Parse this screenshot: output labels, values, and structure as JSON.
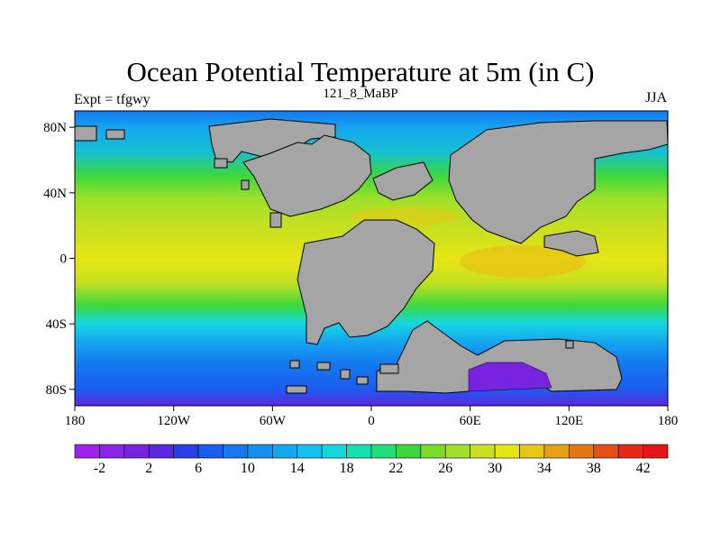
{
  "title": "Ocean Potential Temperature at 5m (in C)",
  "left_string": "Expt = tfgwy",
  "center_string": "121_8_MaBP",
  "right_string": "JJA",
  "y_ticks": [
    "80N",
    "40N",
    "0",
    "40S",
    "80S"
  ],
  "x_ticks": [
    "180",
    "120W",
    "60W",
    "0",
    "60E",
    "120E",
    "180"
  ],
  "colorbar": {
    "labels": [
      "-2",
      "2",
      "6",
      "10",
      "14",
      "18",
      "22",
      "26",
      "30",
      "34",
      "38",
      "42"
    ],
    "colors": [
      "#a020f0",
      "#8c22e8",
      "#7823e0",
      "#5a28e0",
      "#2a3ee8",
      "#1a5ef0",
      "#1478f0",
      "#1490f0",
      "#14a8f0",
      "#14c0f0",
      "#14d8e0",
      "#14e0b0",
      "#1ee078",
      "#3cd83c",
      "#78dc28",
      "#a0e028",
      "#c8e020",
      "#e6e614",
      "#e6c814",
      "#e6a014",
      "#e67814",
      "#e65014",
      "#e62814",
      "#e61414"
    ]
  },
  "chart_data": {
    "type": "heatmap",
    "title": "Ocean Potential Temperature at 5m (in C)",
    "units": "C",
    "x_range": [
      -180,
      180
    ],
    "y_range": [
      -90,
      90
    ],
    "colorbar_range": [
      -4,
      44
    ],
    "colorbar_step": 2,
    "zonal_band_values": [
      {
        "lat": 85,
        "value": 6
      },
      {
        "lat": 70,
        "value": 14
      },
      {
        "lat": 55,
        "value": 20
      },
      {
        "lat": 40,
        "value": 25
      },
      {
        "lat": 25,
        "value": 29
      },
      {
        "lat": 10,
        "value": 30
      },
      {
        "lat": 0,
        "value": 30
      },
      {
        "lat": -10,
        "value": 30
      },
      {
        "lat": -25,
        "value": 28
      },
      {
        "lat": -35,
        "value": 24
      },
      {
        "lat": -45,
        "value": 20
      },
      {
        "lat": -55,
        "value": 14
      },
      {
        "lat": -65,
        "value": 8
      },
      {
        "lat": -75,
        "value": 4
      },
      {
        "lat": -85,
        "value": 0
      }
    ]
  }
}
